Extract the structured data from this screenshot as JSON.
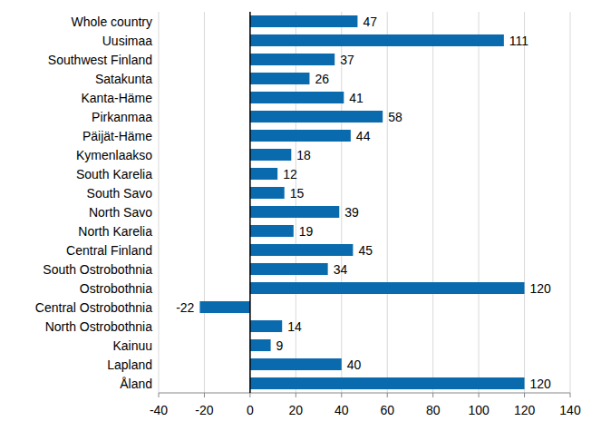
{
  "chart_data": {
    "type": "bar",
    "orientation": "horizontal",
    "categories": [
      "Whole country",
      "Uusimaa",
      "Southwest Finland",
      "Satakunta",
      "Kanta-Häme",
      "Pirkanmaa",
      "Päijät-Häme",
      "Kymenlaakso",
      "South Karelia",
      "South Savo",
      "North Savo",
      "North Karelia",
      "Central Finland",
      "South Ostrobothnia",
      "Ostrobothnia",
      "Central Ostrobothnia",
      "North Ostrobothnia",
      "Kainuu",
      "Lapland",
      "Åland"
    ],
    "values": [
      47,
      111,
      37,
      26,
      41,
      58,
      44,
      18,
      12,
      15,
      39,
      19,
      45,
      34,
      120,
      -22,
      14,
      9,
      40,
      120
    ],
    "color": "#0a6aae",
    "xlim": [
      -40,
      140
    ],
    "xticks": [
      -40,
      -20,
      0,
      20,
      40,
      60,
      80,
      100,
      120,
      140
    ],
    "grid": true,
    "data_labels": true
  }
}
